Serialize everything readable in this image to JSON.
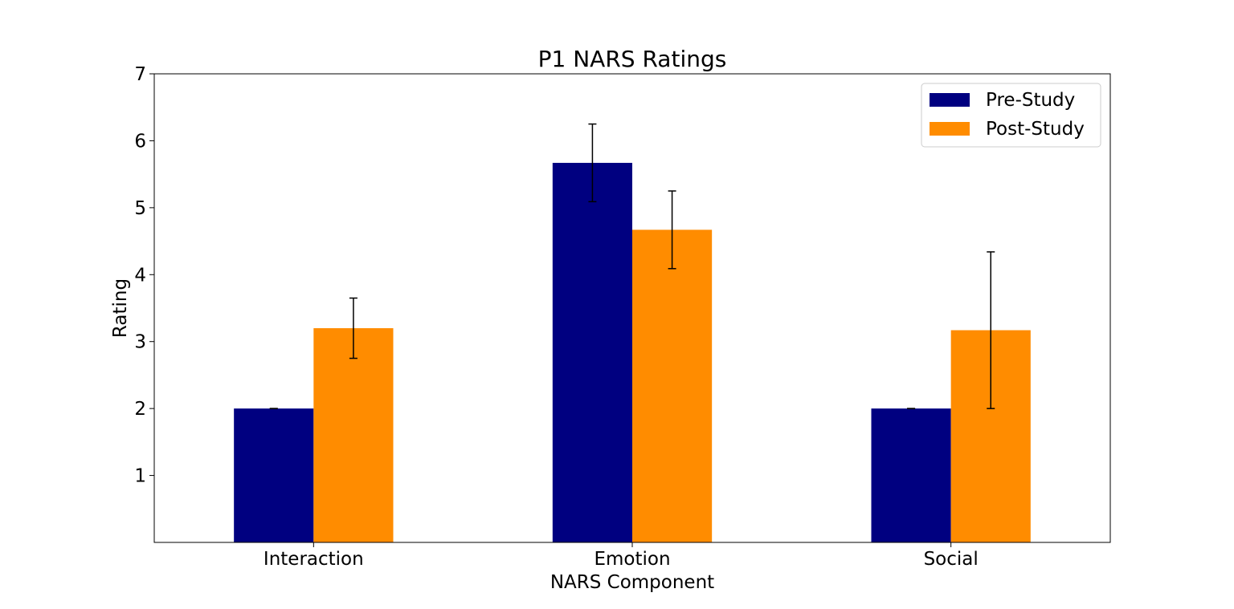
{
  "chart_data": {
    "type": "bar",
    "title": "P1 NARS Ratings",
    "xlabel": "NARS Component",
    "ylabel": "Rating",
    "categories": [
      "Interaction",
      "Emotion",
      "Social"
    ],
    "ylim": [
      0,
      7
    ],
    "yticks": [
      1,
      2,
      3,
      4,
      5,
      6,
      7
    ],
    "grid": false,
    "legend_position": "top-right",
    "series": [
      {
        "name": "Pre-Study",
        "color": "#000080",
        "values": [
          2.0,
          5.67,
          2.0
        ],
        "errors": [
          0,
          0.58,
          0
        ]
      },
      {
        "name": "Post-Study",
        "color": "#ff8c00",
        "values": [
          3.2,
          4.67,
          3.17
        ],
        "errors": [
          0.45,
          0.58,
          1.17
        ]
      }
    ]
  }
}
